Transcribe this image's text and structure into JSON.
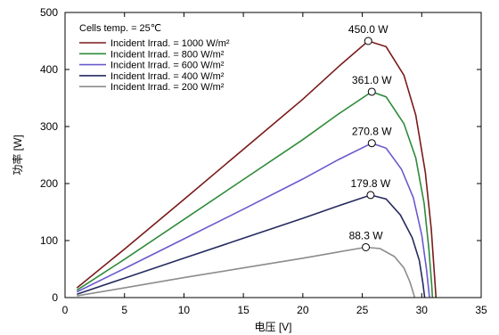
{
  "chart_data": {
    "type": "line",
    "xlabel": "电压 [V]",
    "ylabel": "功率 [W]",
    "xlim": [
      0,
      35
    ],
    "ylim": [
      0,
      500
    ],
    "xticks": [
      0,
      5,
      10,
      15,
      20,
      25,
      30,
      35
    ],
    "yticks": [
      0,
      100,
      200,
      300,
      400,
      500
    ],
    "grid": false,
    "legend": {
      "title": "Cells temp. = 25℃",
      "placement": "top-left"
    },
    "series": [
      {
        "name": "Incident Irrad. = 1000 W/m²",
        "color": "#7a1a1a",
        "peak": {
          "x": 25.5,
          "y": 450.0,
          "label": "450.0  W"
        },
        "points": [
          [
            1,
            17
          ],
          [
            5,
            85
          ],
          [
            10,
            172
          ],
          [
            15,
            260
          ],
          [
            20,
            348
          ],
          [
            23,
            405
          ],
          [
            25.5,
            450
          ],
          [
            27,
            440
          ],
          [
            28.5,
            390
          ],
          [
            29.5,
            320
          ],
          [
            30.3,
            220
          ],
          [
            30.8,
            120
          ],
          [
            31.1,
            30
          ],
          [
            31.2,
            0
          ]
        ]
      },
      {
        "name": "Incident Irrad. = 800 W/m²",
        "color": "#2e8b3a",
        "peak": {
          "x": 25.8,
          "y": 361.0,
          "label": "361.0  W"
        },
        "points": [
          [
            1,
            13
          ],
          [
            5,
            67
          ],
          [
            10,
            137
          ],
          [
            15,
            207
          ],
          [
            20,
            277
          ],
          [
            23,
            322
          ],
          [
            25.8,
            361
          ],
          [
            27,
            352
          ],
          [
            28.5,
            305
          ],
          [
            29.5,
            245
          ],
          [
            30.2,
            165
          ],
          [
            30.6,
            85
          ],
          [
            30.85,
            20
          ],
          [
            30.9,
            0
          ]
        ]
      },
      {
        "name": "Incident Irrad. = 600 W/m²",
        "color": "#6a5acd",
        "peak": {
          "x": 25.8,
          "y": 270.8,
          "label": "270.8  W"
        },
        "points": [
          [
            1,
            10
          ],
          [
            5,
            51
          ],
          [
            10,
            103
          ],
          [
            15,
            155
          ],
          [
            20,
            208
          ],
          [
            23,
            242
          ],
          [
            25.8,
            270.8
          ],
          [
            27,
            262
          ],
          [
            28.3,
            225
          ],
          [
            29.3,
            175
          ],
          [
            30,
            110
          ],
          [
            30.4,
            50
          ],
          [
            30.6,
            10
          ],
          [
            30.65,
            0
          ]
        ]
      },
      {
        "name": "Incident Irrad. = 400 W/m²",
        "color": "#252a5e",
        "peak": {
          "x": 25.7,
          "y": 179.8,
          "label": "179.8  W"
        },
        "points": [
          [
            1,
            6
          ],
          [
            5,
            34
          ],
          [
            10,
            69
          ],
          [
            15,
            104
          ],
          [
            20,
            139
          ],
          [
            23,
            161
          ],
          [
            25.7,
            179.8
          ],
          [
            27,
            173
          ],
          [
            28.2,
            145
          ],
          [
            29.2,
            105
          ],
          [
            29.8,
            65
          ],
          [
            30.1,
            25
          ],
          [
            30.25,
            0
          ]
        ]
      },
      {
        "name": "Incident Irrad. = 200 W/m²",
        "color": "#8c8c8c",
        "peak": {
          "x": 25.3,
          "y": 88.3,
          "label": "88.3  W"
        },
        "points": [
          [
            1,
            3
          ],
          [
            5,
            17
          ],
          [
            10,
            35
          ],
          [
            15,
            52
          ],
          [
            20,
            69
          ],
          [
            23,
            80
          ],
          [
            25.3,
            88.3
          ],
          [
            26.5,
            86
          ],
          [
            27.7,
            72
          ],
          [
            28.5,
            52
          ],
          [
            29.0,
            28
          ],
          [
            29.3,
            8
          ],
          [
            29.4,
            0
          ]
        ]
      }
    ]
  }
}
